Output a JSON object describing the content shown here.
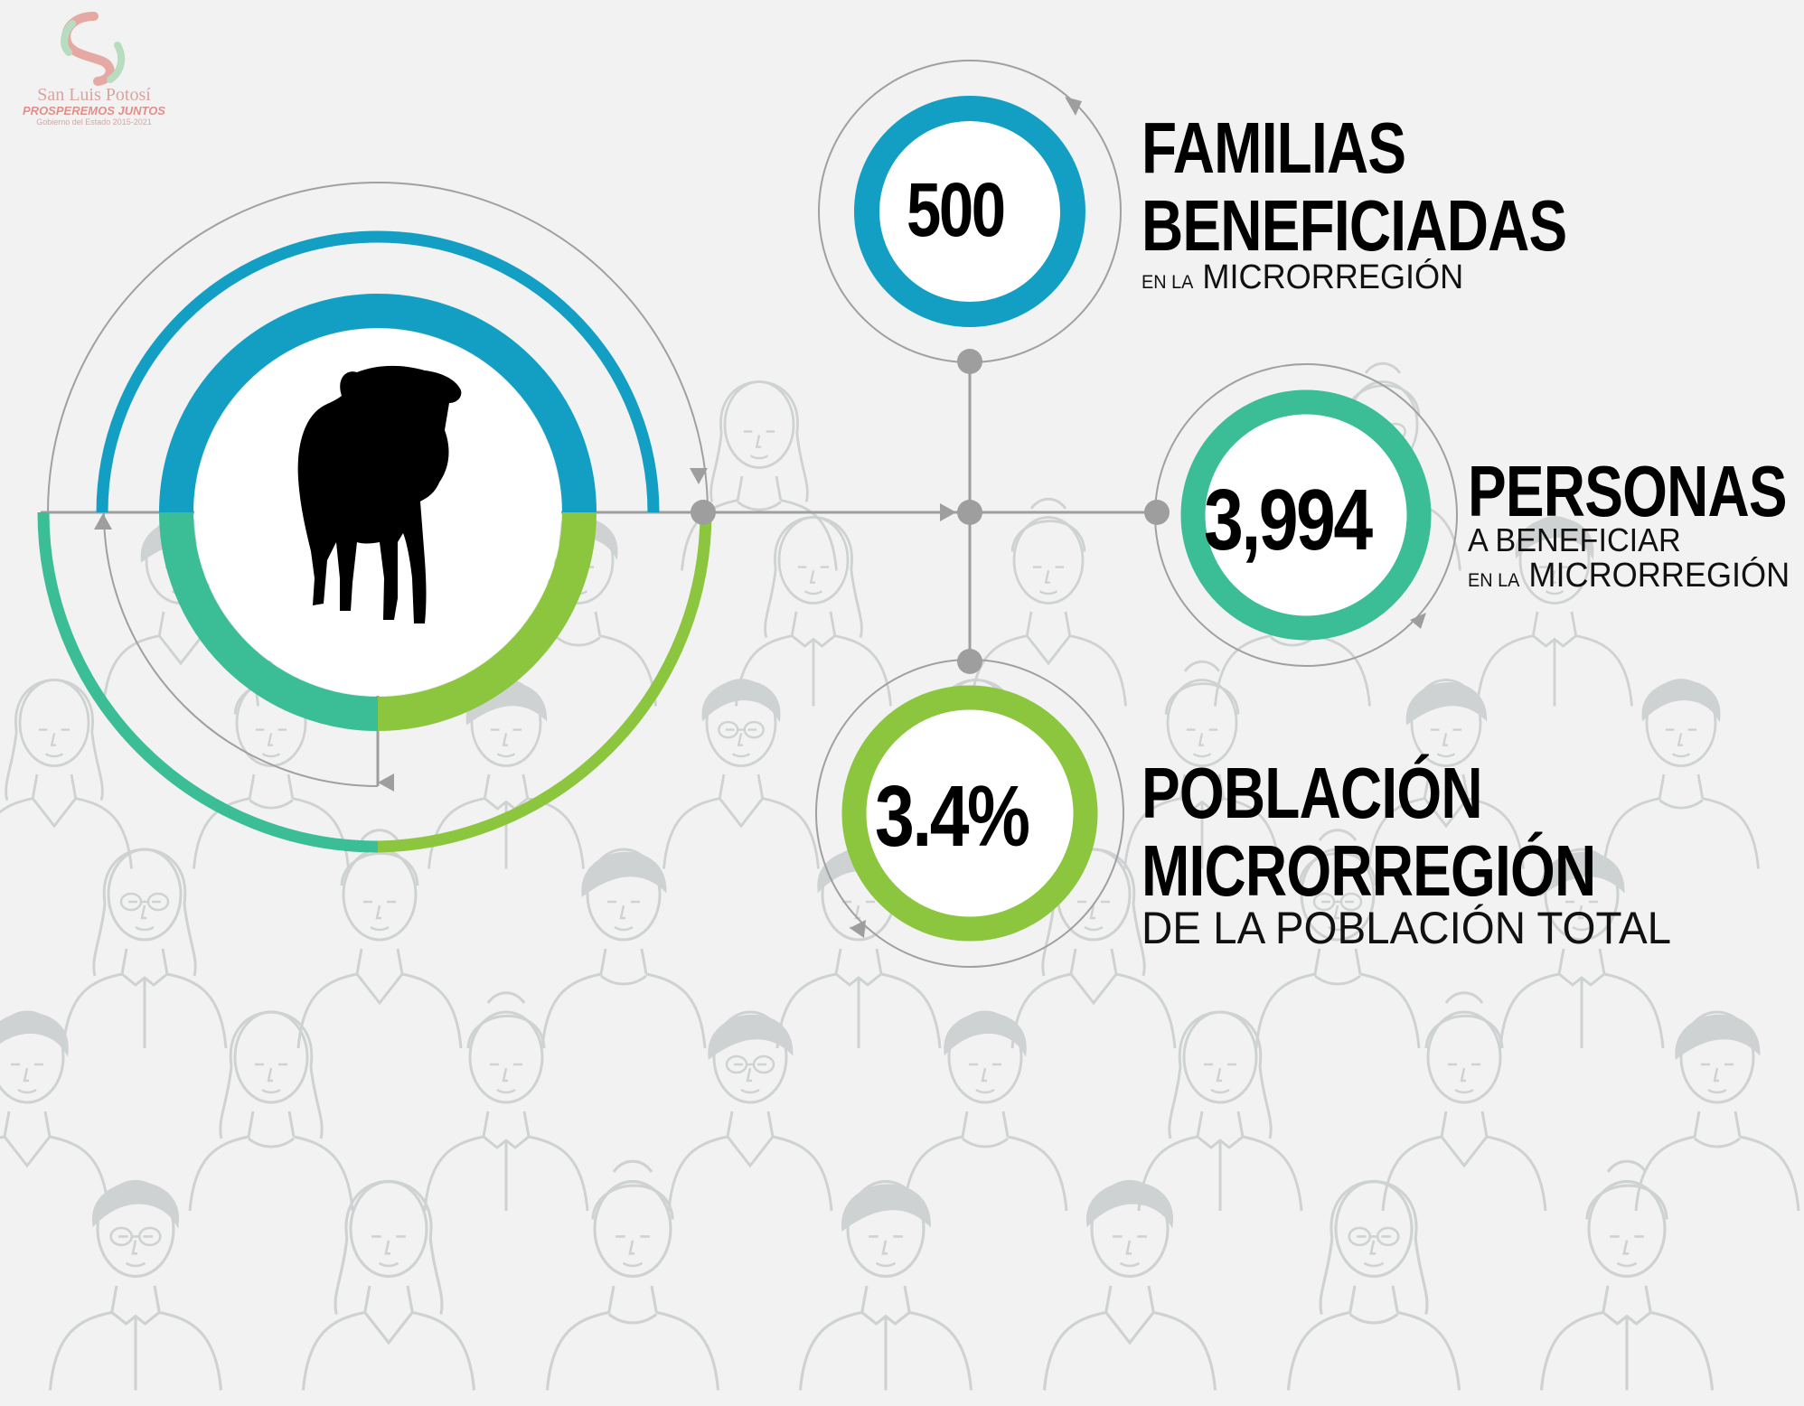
{
  "logo": {
    "name": "San Luis Potosí",
    "motto": "PROSPEREMOS JUNTOS",
    "government": "Gobierno del Estado 2015-2021"
  },
  "stats": {
    "familias": {
      "value": "500",
      "title_line1": "FAMILIAS",
      "title_line2": "BENEFICIADAS",
      "sub_prefix": "EN LA",
      "sub_main": "MICRORREGIÓN"
    },
    "personas": {
      "value": "3,994",
      "title_line1": "PERSONAS",
      "sub_line1": "A BENEFICIAR",
      "sub_prefix": "EN LA",
      "sub_main": "MICRORREGIÓN"
    },
    "poblacion": {
      "value": "3.4%",
      "title_line1": "POBLACIÓN",
      "title_line2": "MICRORREGIÓN",
      "sub_main": "DE LA POBLACIÓN TOTAL"
    }
  },
  "colors": {
    "blue": "#139fc4",
    "teal": "#3bbd96",
    "green": "#8cc63f",
    "connector": "#9e9e9e",
    "crowd_line": "#cfd2d2"
  },
  "icons": {
    "central": "cow-silhouette-icon"
  }
}
